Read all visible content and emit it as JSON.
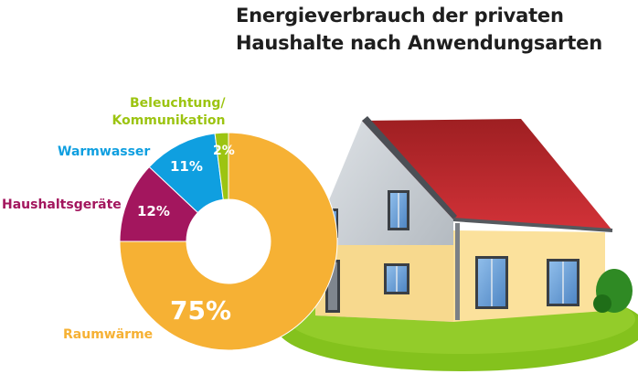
{
  "title_line1": "Energieverbrauch der privaten",
  "title_line2": "Haushalte nach Anwendungsarten",
  "chart_data": {
    "type": "pie",
    "variant": "donut",
    "title": "Energieverbrauch der privaten Haushalte nach Anwendungsarten",
    "categories": [
      "Raumwärme",
      "Haushaltsgeräte",
      "Warmwasser",
      "Beleuchtung/ Kommunikation"
    ],
    "values": [
      75,
      12,
      11,
      2
    ],
    "value_labels": [
      "75%",
      "12%",
      "11%",
      "2%"
    ],
    "unit": "%",
    "colors": [
      "#f6b134",
      "#a3165e",
      "#0f9fe0",
      "#9cc411"
    ]
  },
  "labels": {
    "raumwaerme": "Raumwärme",
    "haushaltsgeraete": "Haushaltsgeräte",
    "warmwasser": "Warmwasser",
    "beleuchtung_line1": "Beleuchtung/",
    "beleuchtung_line2": "Kommunikation"
  },
  "illustration": {
    "subject": "house",
    "roof_color": "#c0272d",
    "wall_color": "#fbe19c",
    "gable_color": "#c8cdd3",
    "lawn_color": "#84c21d"
  }
}
